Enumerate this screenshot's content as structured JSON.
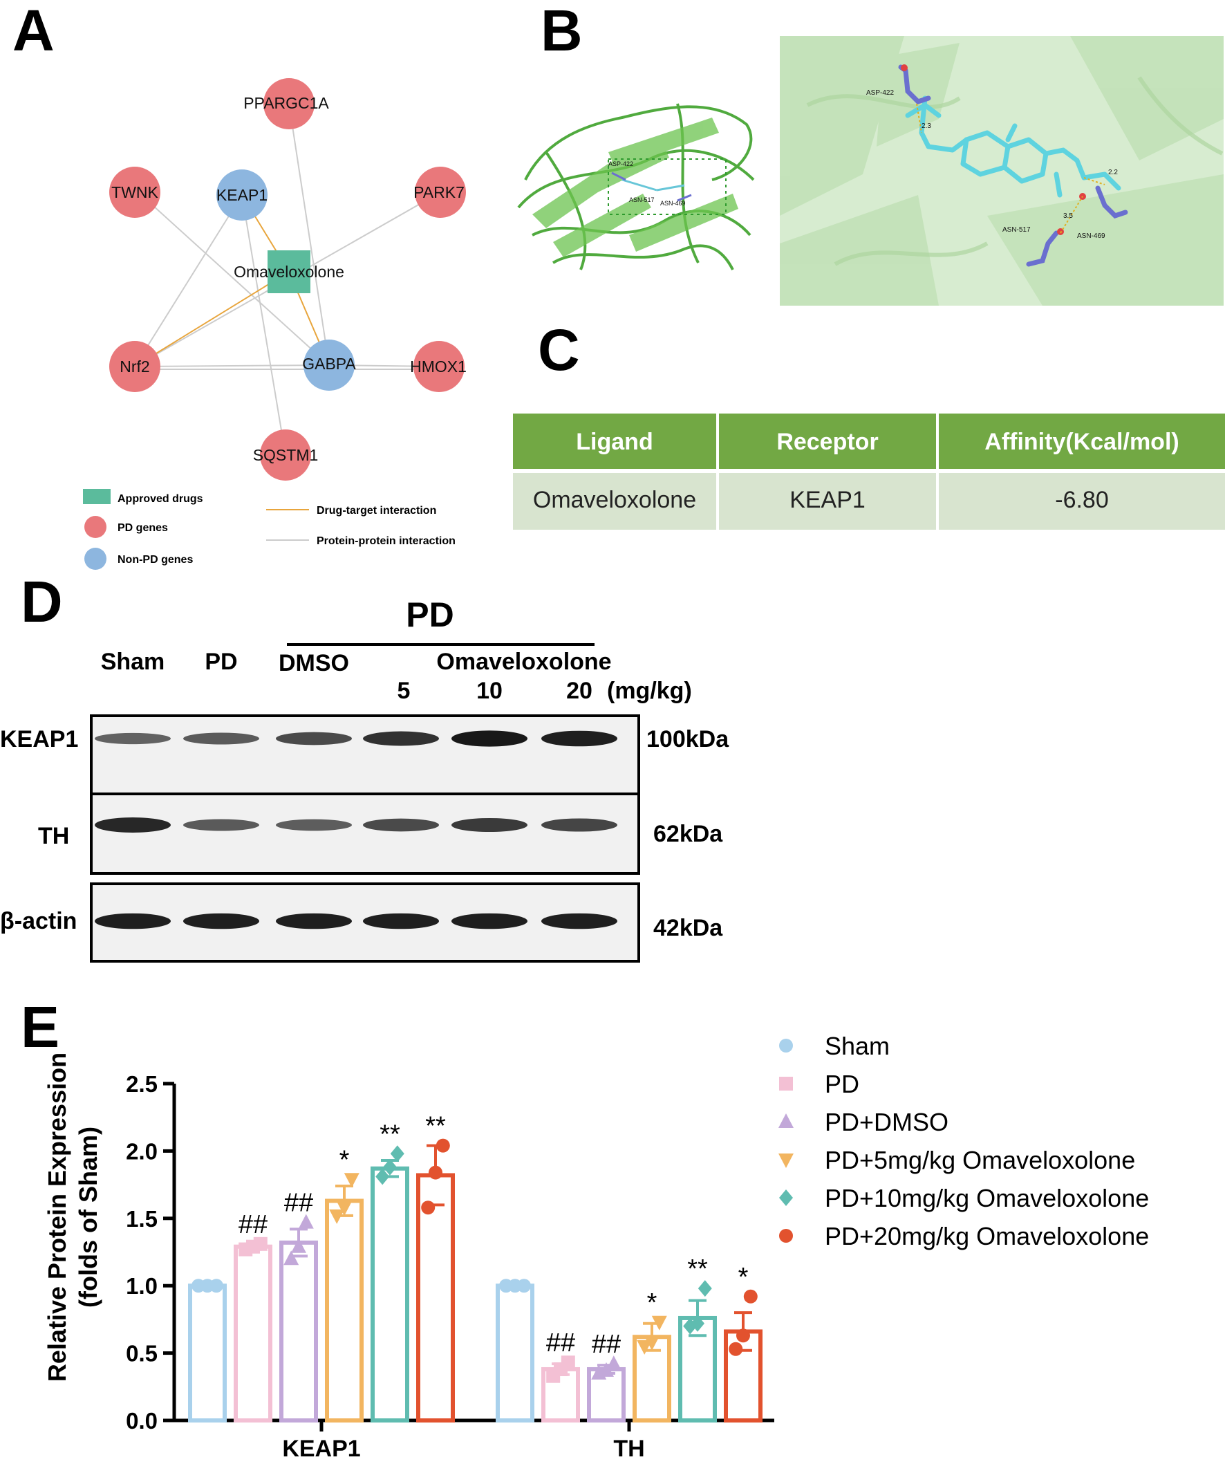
{
  "panels": {
    "a": "A",
    "b": "B",
    "c": "C",
    "d": "D",
    "e": "E"
  },
  "network": {
    "drug": "Omaveloxolone",
    "nodes": {
      "ppargc1a": "PPARGC1A",
      "twnk": "TWNK",
      "keap1": "KEAP1",
      "park7": "PARK7",
      "nrf2": "Nrf2",
      "gabpa": "GABPA",
      "hmox1": "HMOX1",
      "sqstm1": "SQSTM1"
    },
    "legend": {
      "approved_drugs": "Approved drugs",
      "pd_genes": "PD genes",
      "non_pd_genes": "Non-PD genes",
      "drug_target": "Drug-target interaction",
      "ppi": "Protein-protein interaction"
    },
    "colors": {
      "pd": "#e9787b",
      "non_pd": "#8db6df",
      "drug": "#5bbb9c",
      "drug_edge": "#e8a53c",
      "ppi_edge": "#cccccc"
    }
  },
  "docking": {
    "residues": [
      "ASP-422",
      "ASN-517",
      "ASN-469"
    ],
    "distances": [
      "2.3",
      "2.2",
      "3.5"
    ],
    "overview_labels": [
      "ASP-422",
      "ASN-517",
      "ASN-469"
    ]
  },
  "affinity_table": {
    "headers": [
      "Ligand",
      "Receptor",
      "Affinity(Kcal/mol)"
    ],
    "rows": [
      [
        "Omaveloxolone",
        "KEAP1",
        "-6.80"
      ]
    ],
    "colors": {
      "header": "#72a844",
      "row": "#d8e4cf"
    }
  },
  "western_blot": {
    "group_header": "PD",
    "lanes": {
      "sham": "Sham",
      "pd": "PD",
      "dmso": "DMSO",
      "drug": "Omaveloxolone"
    },
    "doses": [
      "5",
      "10",
      "20"
    ],
    "dose_unit": "(mg/kg)",
    "blots": [
      {
        "label": "KEAP1",
        "size": "100kDa",
        "intensities": [
          0.45,
          0.5,
          0.62,
          0.78,
          0.95,
          0.9
        ]
      },
      {
        "label": "TH",
        "size": "62kDa",
        "intensities": [
          0.85,
          0.5,
          0.48,
          0.62,
          0.72,
          0.65
        ]
      },
      {
        "label": "β-actin",
        "size": "42kDa",
        "intensities": [
          0.9,
          0.9,
          0.9,
          0.9,
          0.9,
          0.9
        ]
      }
    ]
  },
  "chart_data": {
    "type": "bar",
    "ylabel": "Relative Protein Expression (folds of Sham)",
    "ylabel_line1": "Relative Protein Expression",
    "ylabel_line2": "(folds of Sham)",
    "ylim": [
      0,
      2.5
    ],
    "yticks": [
      "0.0",
      "0.5",
      "1.0",
      "1.5",
      "2.0",
      "2.5"
    ],
    "categories": [
      "KEAP1",
      "TH"
    ],
    "legend_position": "right",
    "series": [
      {
        "name": "Sham",
        "color": "#a9d1ec",
        "marker": "circle",
        "values": [
          1.0,
          1.0
        ],
        "errors": [
          0.0,
          0.0
        ],
        "points": [
          [
            1.0,
            1.0,
            1.0
          ],
          [
            1.0,
            1.0,
            1.0
          ]
        ],
        "annotations": [
          "",
          ""
        ]
      },
      {
        "name": "PD",
        "color": "#f3c0d4",
        "marker": "square",
        "values": [
          1.29,
          0.38
        ],
        "errors": [
          0.02,
          0.04
        ],
        "points": [
          [
            1.27,
            1.29,
            1.31
          ],
          [
            0.33,
            0.38,
            0.43
          ]
        ],
        "annotations": [
          "##",
          "##"
        ]
      },
      {
        "name": "PD+DMSO",
        "color": "#c2a8d9",
        "marker": "triangle-up",
        "values": [
          1.32,
          0.38
        ],
        "errors": [
          0.1,
          0.03
        ],
        "points": [
          [
            1.2,
            1.29,
            1.47
          ],
          [
            0.35,
            0.37,
            0.42
          ]
        ],
        "annotations": [
          "##",
          "##"
        ]
      },
      {
        "name": "PD+5mg/kg Omaveloxolone",
        "color": "#f2b560",
        "marker": "triangle-down",
        "values": [
          1.63,
          0.62
        ],
        "errors": [
          0.11,
          0.1
        ],
        "points": [
          [
            1.52,
            1.58,
            1.79
          ],
          [
            0.55,
            0.58,
            0.73
          ]
        ],
        "annotations": [
          "*",
          "*"
        ]
      },
      {
        "name": "PD+10mg/kg Omaveloxolone",
        "color": "#5fbcb0",
        "marker": "diamond",
        "values": [
          1.87,
          0.76
        ],
        "errors": [
          0.06,
          0.13
        ],
        "points": [
          [
            1.81,
            1.88,
            1.98
          ],
          [
            0.7,
            0.72,
            0.98
          ]
        ],
        "annotations": [
          "**",
          "**"
        ]
      },
      {
        "name": "PD+20mg/kg Omaveloxolone",
        "color": "#e2522e",
        "marker": "circle",
        "values": [
          1.82,
          0.66
        ],
        "errors": [
          0.22,
          0.14
        ],
        "points": [
          [
            1.58,
            1.84,
            2.04
          ],
          [
            0.53,
            0.63,
            0.92
          ]
        ],
        "annotations": [
          "**",
          "*"
        ]
      }
    ]
  }
}
